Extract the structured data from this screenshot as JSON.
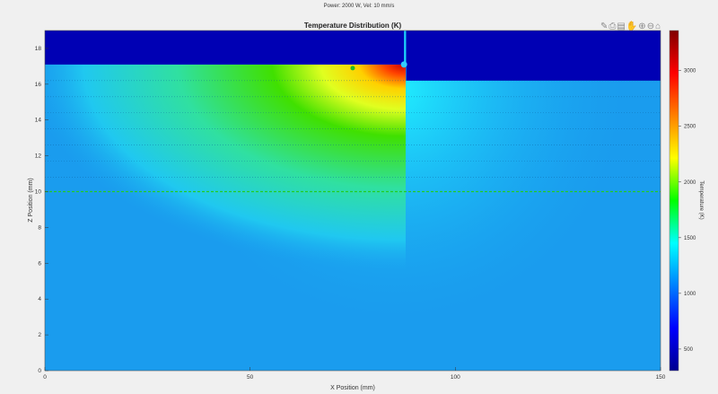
{
  "chart_data": {
    "type": "heatmap",
    "suptitle": "Power: 2000 W, Vel: 10 mm/s",
    "title": "Temperature Distribution (K)",
    "xlabel": "X Position (mm)",
    "ylabel": "Z Position (mm)",
    "xlim": [
      0,
      150
    ],
    "ylim": [
      0,
      19
    ],
    "xticks": [
      0,
      50,
      100,
      150
    ],
    "yticks": [
      0,
      2,
      4,
      6,
      8,
      10,
      12,
      14,
      16,
      18
    ],
    "colorbar": {
      "label": "Temperature (K)",
      "range": [
        306,
        3360
      ],
      "ticks": [
        500,
        1000,
        1500,
        2000,
        2500,
        3000
      ],
      "colormap": "jet"
    },
    "ambient_region": [
      {
        "x": [
          0,
          87.5
        ],
        "z_from": 17.1
      },
      {
        "x": [
          88,
          150
        ],
        "z_from": 16.2
      }
    ],
    "layer_lines_z": [
      16.2,
      15.3,
      14.4,
      13.5,
      12.6,
      11.7,
      10.8
    ],
    "substrate_line_z": 10,
    "markers": [
      {
        "x": 75,
        "z": 16.9,
        "color": "#22bb22"
      },
      {
        "x": 87.5,
        "z": 17.1,
        "color": "#33ccff"
      }
    ],
    "hot_spot": {
      "x": 87,
      "z": 17,
      "peak": 3300
    }
  },
  "toolbar": {
    "icons": [
      "brush-icon",
      "print-icon",
      "save-icon",
      "pan-icon",
      "zoom-in-icon",
      "zoom-out-icon",
      "home-icon"
    ]
  }
}
